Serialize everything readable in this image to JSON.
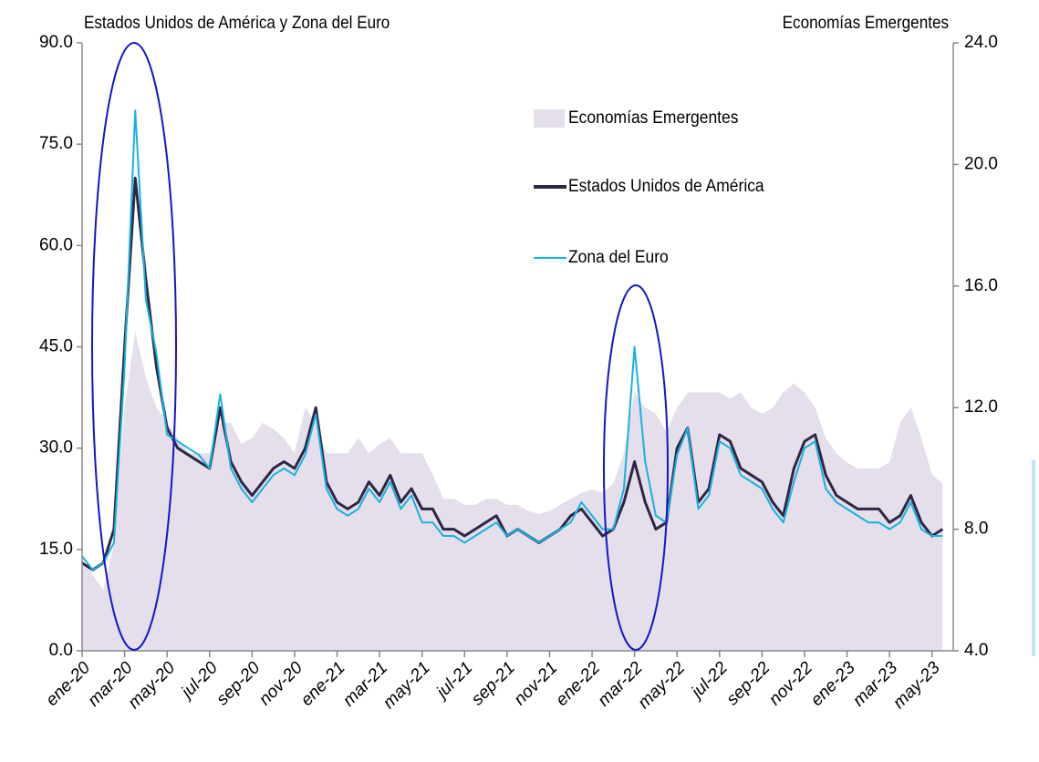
{
  "chart_data": {
    "type": "line",
    "title": "Estados Unidos de América y Zona del Euro",
    "y2_title": "Economías Emergentes",
    "categories": [
      "ene-20",
      null,
      null,
      null,
      "mar-20",
      null,
      null,
      null,
      "may-20",
      null,
      null,
      null,
      "jul-20",
      null,
      null,
      null,
      "sep-20",
      null,
      null,
      null,
      "nov-20",
      null,
      null,
      null,
      "ene-21",
      null,
      null,
      null,
      "mar-21",
      null,
      null,
      null,
      "may-21",
      null,
      null,
      null,
      "jul-21",
      null,
      null,
      null,
      "sep-21",
      null,
      null,
      null,
      "nov-21",
      null,
      null,
      null,
      "ene-22",
      null,
      null,
      null,
      "mar-22",
      null,
      null,
      null,
      "may-22",
      null,
      null,
      null,
      "jul-22",
      null,
      null,
      null,
      "sep-22",
      null,
      null,
      null,
      "nov-22",
      null,
      null,
      null,
      "ene-23",
      null,
      null,
      null,
      "mar-23",
      null,
      null,
      null,
      "may-23",
      null
    ],
    "series": [
      {
        "name": "Economías Emergentes",
        "kind": "area",
        "axis": "y2",
        "color": "#e4dfeb",
        "values": [
          7.0,
          6.5,
          6.0,
          7.5,
          12,
          14.5,
          13,
          12,
          11.5,
          11,
          10.5,
          10.5,
          10.5,
          11.5,
          11.5,
          10.8,
          11,
          11.5,
          11.3,
          11,
          10.5,
          12,
          11.5,
          10.5,
          10.5,
          10.5,
          11,
          10.5,
          10.8,
          11,
          10.5,
          10.5,
          10.5,
          9.8,
          9,
          9,
          8.8,
          8.8,
          9,
          9,
          8.8,
          8.8,
          8.6,
          8.5,
          8.6,
          8.8,
          9,
          9.2,
          9.3,
          9.2,
          9.5,
          10.5,
          12.5,
          12,
          11.8,
          11.2,
          12,
          12.5,
          12.5,
          12.5,
          12.5,
          12.3,
          12.5,
          12,
          11.8,
          12,
          12.5,
          12.8,
          12.5,
          12,
          11,
          10.5,
          10.2,
          10,
          10,
          10,
          10.2,
          11.5,
          12,
          11,
          9.8,
          9.5
        ]
      },
      {
        "name": "Estados Unidos de América",
        "kind": "line",
        "color": "#2e2645",
        "values": [
          13,
          12,
          13,
          18,
          45,
          70,
          55,
          42,
          33,
          30,
          29,
          28,
          27,
          36,
          28,
          25,
          23,
          25,
          27,
          28,
          27,
          30,
          36,
          25,
          22,
          21,
          22,
          25,
          23,
          26,
          22,
          24,
          21,
          21,
          18,
          18,
          17,
          18,
          19,
          20,
          17,
          18,
          17,
          16,
          17,
          18,
          20,
          21,
          19,
          17,
          18,
          22,
          28,
          22,
          18,
          19,
          30,
          33,
          22,
          24,
          32,
          31,
          27,
          26,
          25,
          22,
          20,
          27,
          31,
          32,
          26,
          23,
          22,
          21,
          21,
          21,
          19,
          20,
          23,
          19,
          17,
          18
        ]
      },
      {
        "name": "Zona del Euro",
        "kind": "line",
        "color": "#17b2e0",
        "values": [
          14,
          12,
          13,
          16,
          42,
          80,
          52,
          44,
          32,
          31,
          30,
          29,
          27,
          38,
          27,
          24,
          22,
          24,
          26,
          27,
          26,
          29,
          35,
          24,
          21,
          20,
          21,
          24,
          22,
          25,
          21,
          23,
          19,
          19,
          17,
          17,
          16,
          17,
          18,
          19,
          17,
          18,
          17,
          16,
          17,
          18,
          19,
          22,
          20,
          18,
          18,
          24,
          45,
          28,
          20,
          19,
          29,
          33,
          21,
          23,
          31,
          30,
          26,
          25,
          24,
          21,
          19,
          25,
          30,
          31,
          24,
          22,
          21,
          20,
          19,
          19,
          18,
          19,
          22,
          18,
          17,
          17
        ]
      }
    ],
    "ylim": [
      0,
      90
    ],
    "yticks": [
      {
        "value": 0,
        "label": "0.0"
      },
      {
        "value": 15,
        "label": "15.0"
      },
      {
        "value": 30,
        "label": "30.0"
      },
      {
        "value": 45,
        "label": "45.0"
      },
      {
        "value": 60,
        "label": "60.0"
      },
      {
        "value": 75,
        "label": "75.0"
      },
      {
        "value": 90,
        "label": "90.0"
      }
    ],
    "y2lim": [
      4,
      24
    ],
    "y2ticks": [
      {
        "value": 4,
        "label": "4.0"
      },
      {
        "value": 8,
        "label": "8.0"
      },
      {
        "value": 12,
        "label": "12.0"
      },
      {
        "value": 16,
        "label": "16.0"
      },
      {
        "value": 20,
        "label": "20.0"
      },
      {
        "value": 24,
        "label": "24.0"
      }
    ]
  }
}
